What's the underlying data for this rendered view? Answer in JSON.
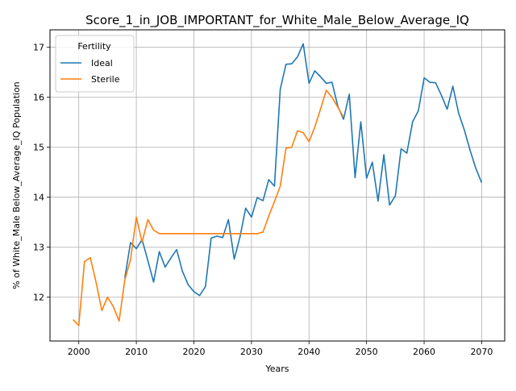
{
  "chart_data": {
    "type": "line",
    "title": "Score_1_in_JOB_IMPORTANT_for_White_Male_Below_Average_IQ",
    "xlabel": "Years",
    "ylabel": "% of White_Male Below_Average_IQ Population",
    "xlim": [
      1995,
      2074
    ],
    "ylim": [
      11.12,
      17.35
    ],
    "xticks": [
      2000,
      2010,
      2020,
      2030,
      2040,
      2050,
      2060,
      2070
    ],
    "yticks": [
      12,
      13,
      14,
      15,
      16,
      17
    ],
    "grid": true,
    "legend": {
      "title": "Fertility",
      "position": "top-left"
    },
    "series": [
      {
        "name": "Ideal",
        "color": "#1f77b4",
        "x": [
          2008,
          2009,
          2010,
          2011,
          2012,
          2013,
          2014,
          2015,
          2016,
          2017,
          2018,
          2019,
          2020,
          2021,
          2022,
          2023,
          2024,
          2025,
          2026,
          2027,
          2028,
          2029,
          2030,
          2031,
          2032,
          2033,
          2034,
          2035,
          2036,
          2037,
          2038,
          2039,
          2040,
          2041,
          2042,
          2043,
          2044,
          2045,
          2046,
          2047,
          2048,
          2049,
          2050,
          2051,
          2052,
          2053,
          2054,
          2055,
          2056,
          2057,
          2058,
          2059,
          2060,
          2061,
          2062,
          2063,
          2064,
          2065,
          2066,
          2067,
          2068,
          2069,
          2070
        ],
        "values": [
          12.38,
          13.09,
          12.97,
          13.15,
          12.73,
          12.3,
          12.91,
          12.6,
          12.78,
          12.95,
          12.52,
          12.25,
          12.11,
          12.03,
          12.21,
          13.18,
          13.22,
          13.19,
          13.55,
          12.76,
          13.2,
          13.78,
          13.6,
          13.99,
          13.93,
          14.35,
          14.22,
          16.16,
          16.66,
          16.67,
          16.81,
          17.07,
          16.28,
          16.53,
          16.41,
          16.28,
          16.3,
          15.82,
          15.56,
          16.06,
          14.39,
          15.51,
          14.38,
          14.7,
          13.92,
          14.85,
          13.84,
          14.03,
          14.97,
          14.88,
          15.51,
          15.73,
          16.39,
          16.3,
          16.29,
          16.04,
          15.76,
          16.22,
          15.68,
          15.34,
          14.93,
          14.57,
          14.29
        ]
      },
      {
        "name": "Sterile",
        "color": "#ff7f0e",
        "x": [
          1999,
          2000,
          2001,
          2002,
          2003,
          2004,
          2005,
          2006,
          2007,
          2008,
          2009,
          2010,
          2011,
          2012,
          2013,
          2014,
          2015,
          2016,
          2017,
          2018,
          2019,
          2020,
          2021,
          2022,
          2023,
          2024,
          2025,
          2026,
          2027,
          2028,
          2029,
          2030,
          2031,
          2032,
          2033,
          2034,
          2035,
          2036,
          2037,
          2038,
          2039,
          2040,
          2041,
          2042,
          2043,
          2044,
          2045,
          2046
        ],
        "values": [
          11.55,
          11.43,
          12.71,
          12.79,
          12.3,
          11.73,
          12.0,
          11.81,
          11.52,
          12.34,
          12.75,
          13.6,
          13.1,
          13.55,
          13.34,
          13.27,
          13.27,
          13.27,
          13.27,
          13.27,
          13.27,
          13.27,
          13.27,
          13.27,
          13.27,
          13.27,
          13.27,
          13.27,
          13.27,
          13.27,
          13.27,
          13.27,
          13.27,
          13.3,
          13.62,
          13.91,
          14.22,
          14.98,
          15.0,
          15.33,
          15.29,
          15.11,
          15.4,
          15.76,
          16.14,
          16.0,
          15.8,
          15.6
        ]
      }
    ]
  }
}
